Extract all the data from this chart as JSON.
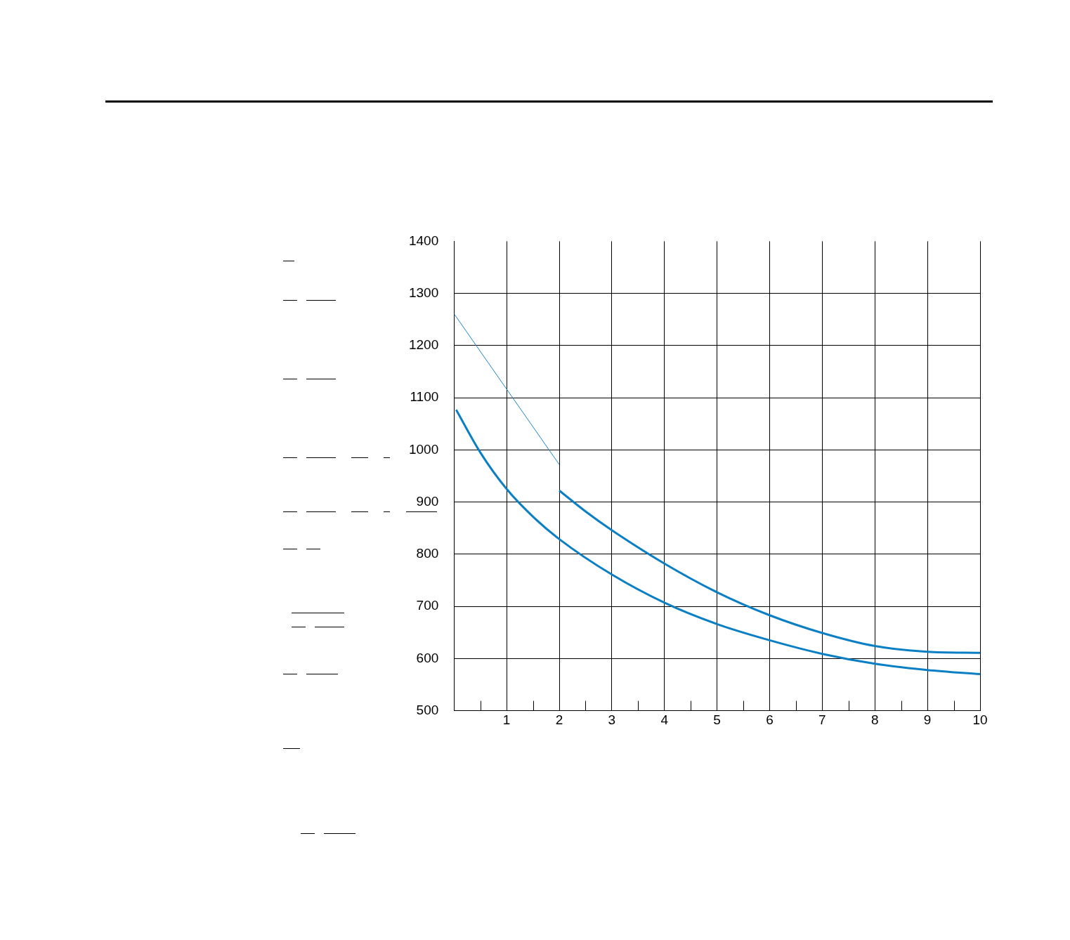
{
  "chart_data": {
    "type": "line",
    "xlim": [
      0,
      10
    ],
    "ylim": [
      500,
      1400
    ],
    "xticks": [
      {
        "value": 0,
        "label": null
      },
      {
        "value": 0.5,
        "label": null
      },
      1,
      {
        "value": 1.5,
        "label": null
      },
      2,
      {
        "value": 2.5,
        "label": null
      },
      3,
      {
        "value": 3.5,
        "label": null
      },
      4,
      {
        "value": 4.5,
        "label": null
      },
      5,
      {
        "value": 5.5,
        "label": null
      },
      6,
      {
        "value": 6.5,
        "label": null
      },
      7,
      {
        "value": 7.5,
        "label": null
      },
      8,
      {
        "value": 8.5,
        "label": null
      },
      9,
      {
        "value": 9.5,
        "label": null
      },
      10
    ],
    "yticks": [
      500,
      600,
      700,
      800,
      900,
      1000,
      1100,
      1200,
      1300,
      1400
    ],
    "grid": true,
    "legend": false,
    "marker": "none",
    "line_style": "solid",
    "series": [
      {
        "color": "#1a86c8",
        "x": [
          0,
          2
        ],
        "values": [
          1261,
          972
        ]
      },
      {
        "color": "#0a7fc4",
        "x": [
          0.04,
          0.5,
          1,
          1.5,
          2,
          3,
          4,
          5,
          6,
          7,
          8,
          9,
          10
        ],
        "values": [
          1077,
          995,
          925,
          872,
          829,
          761,
          707,
          666,
          635,
          609,
          590,
          578,
          570
        ]
      },
      {
        "color": "#0a7fc4",
        "x": [
          2,
          2.5,
          3,
          4,
          5,
          6,
          7,
          8,
          9,
          10
        ],
        "values": [
          922,
          882,
          846,
          782,
          727,
          683,
          649,
          624,
          613,
          611
        ]
      }
    ]
  }
}
